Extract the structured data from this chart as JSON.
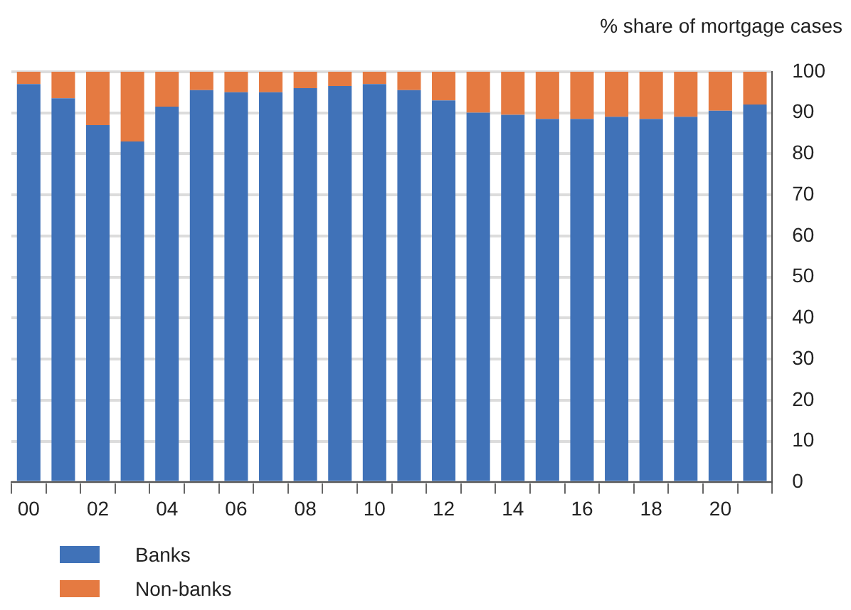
{
  "chart_data": {
    "type": "bar",
    "stacked": true,
    "ylabel": "% share of mortgage cases",
    "categories": [
      "00",
      null,
      "02",
      null,
      "04",
      null,
      "06",
      null,
      "08",
      null,
      "10",
      null,
      "12",
      null,
      "14",
      null,
      "16",
      null,
      "18",
      null,
      "20",
      null
    ],
    "series": [
      {
        "name": "Banks",
        "color": "#4072b8",
        "values": [
          97,
          93.5,
          87,
          83,
          91.5,
          95.5,
          95,
          95,
          96,
          96.5,
          97,
          95.5,
          93,
          90,
          89.5,
          88.5,
          88.5,
          89,
          88.5,
          89,
          90.5,
          92
        ]
      },
      {
        "name": "Non-banks",
        "color": "#e57a41",
        "values": [
          3,
          6.5,
          13,
          17,
          8.5,
          4.5,
          5,
          5,
          4,
          3.5,
          3,
          4.5,
          7,
          10,
          10.5,
          11.5,
          11.5,
          11,
          11.5,
          11,
          9.5,
          8
        ]
      }
    ],
    "ylim": [
      0,
      100
    ],
    "yticks": [
      0,
      10,
      20,
      30,
      40,
      50,
      60,
      70,
      80,
      90,
      100
    ],
    "grid": "y",
    "legend": "bottom left"
  }
}
